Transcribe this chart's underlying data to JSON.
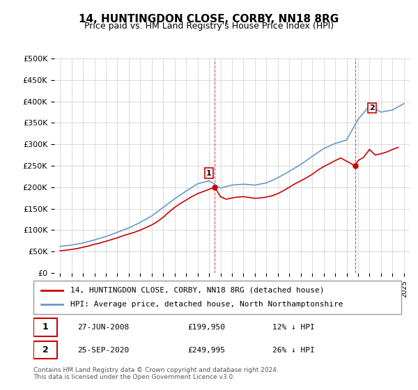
{
  "title": "14, HUNTINGDON CLOSE, CORBY, NN18 8RG",
  "subtitle": "Price paid vs. HM Land Registry's House Price Index (HPI)",
  "legend_line1": "14, HUNTINGDON CLOSE, CORBY, NN18 8RG (detached house)",
  "legend_line2": "HPI: Average price, detached house, North Northamptonshire",
  "annotation1_label": "1",
  "annotation1_date": "27-JUN-2008",
  "annotation1_price": "£199,950",
  "annotation1_hpi": "12% ↓ HPI",
  "annotation1_year": 2008.49,
  "annotation1_value": 199950,
  "annotation2_label": "2",
  "annotation2_date": "25-SEP-2020",
  "annotation2_price": "£249,995",
  "annotation2_hpi": "26% ↓ HPI",
  "annotation2_year": 2020.73,
  "annotation2_value": 249995,
  "footer": "Contains HM Land Registry data © Crown copyright and database right 2024.\nThis data is licensed under the Open Government Licence v3.0.",
  "price_color": "#cc0000",
  "hpi_color": "#6699cc",
  "annotation_color": "#cc0000",
  "ylim": [
    0,
    500000
  ],
  "yticks": [
    0,
    50000,
    100000,
    150000,
    200000,
    250000,
    300000,
    350000,
    400000,
    450000,
    500000
  ],
  "ytick_labels": [
    "£0",
    "£50K",
    "£100K",
    "£150K",
    "£200K",
    "£250K",
    "£300K",
    "£350K",
    "£400K",
    "£450K",
    "£500K"
  ],
  "hpi_years": [
    1995,
    1996,
    1997,
    1998,
    1999,
    2000,
    2001,
    2002,
    2003,
    2004,
    2005,
    2006,
    2007,
    2008,
    2009,
    2010,
    2011,
    2012,
    2013,
    2014,
    2015,
    2016,
    2017,
    2018,
    2019,
    2020,
    2021,
    2022,
    2023,
    2024,
    2025
  ],
  "hpi_values": [
    62000,
    65000,
    70000,
    77000,
    85000,
    95000,
    105000,
    118000,
    133000,
    153000,
    173000,
    191000,
    208000,
    215000,
    198000,
    205000,
    207000,
    205000,
    210000,
    222000,
    237000,
    253000,
    272000,
    290000,
    302000,
    310000,
    358000,
    390000,
    375000,
    380000,
    395000
  ],
  "price_years": [
    1995,
    1995.5,
    1996,
    1996.5,
    1997,
    1997.5,
    1998,
    1998.5,
    1999,
    1999.5,
    2000,
    2000.5,
    2001,
    2001.5,
    2002,
    2002.5,
    2003,
    2003.5,
    2004,
    2004.5,
    2005,
    2005.5,
    2006,
    2006.5,
    2007,
    2007.5,
    2008.49,
    2009,
    2009.5,
    2010,
    2010.5,
    2011,
    2011.5,
    2012,
    2012.5,
    2013,
    2013.5,
    2014,
    2014.5,
    2015,
    2015.5,
    2016,
    2016.5,
    2017,
    2017.5,
    2018,
    2018.5,
    2019,
    2019.5,
    2020.73,
    2021,
    2021.5,
    2022,
    2022.5,
    2023,
    2023.5,
    2024,
    2024.5
  ],
  "price_values": [
    52000,
    53000,
    55000,
    57000,
    60000,
    63000,
    67000,
    70000,
    74000,
    78000,
    82000,
    87000,
    91000,
    95000,
    100000,
    106000,
    112000,
    120000,
    130000,
    142000,
    153000,
    162000,
    170000,
    178000,
    185000,
    190000,
    199950,
    178000,
    172000,
    175000,
    177000,
    178000,
    176000,
    174000,
    175000,
    177000,
    180000,
    185000,
    192000,
    200000,
    208000,
    215000,
    222000,
    230000,
    240000,
    248000,
    255000,
    262000,
    268000,
    249995,
    262000,
    270000,
    288000,
    275000,
    278000,
    282000,
    288000,
    293000
  ]
}
